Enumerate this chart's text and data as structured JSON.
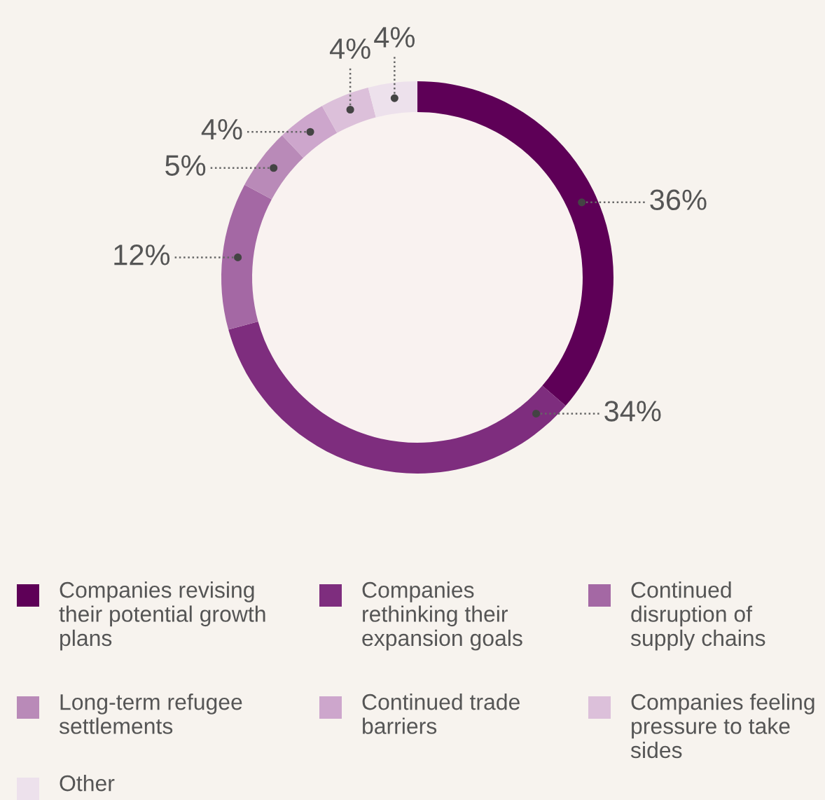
{
  "chart_data": {
    "type": "donut",
    "categories": [
      "Companies revising their potential growth plans",
      "Companies rethinking their expansion goals",
      "Continued disruption of supply chains",
      "Long-term refugee settlements",
      "Continued trade barriers",
      "Companies feeling pressure to take sides",
      "Other"
    ],
    "values": [
      36,
      34,
      12,
      5,
      4,
      4,
      4
    ],
    "colors": [
      "#5e0057",
      "#7e2d7e",
      "#a468a4",
      "#b98ab8",
      "#cda6cc",
      "#dcc0da",
      "#ede1ec"
    ],
    "value_labels": [
      "36%",
      "34%",
      "12%",
      "5%",
      "4%",
      "4%",
      "4%"
    ],
    "legend": "bottom"
  }
}
